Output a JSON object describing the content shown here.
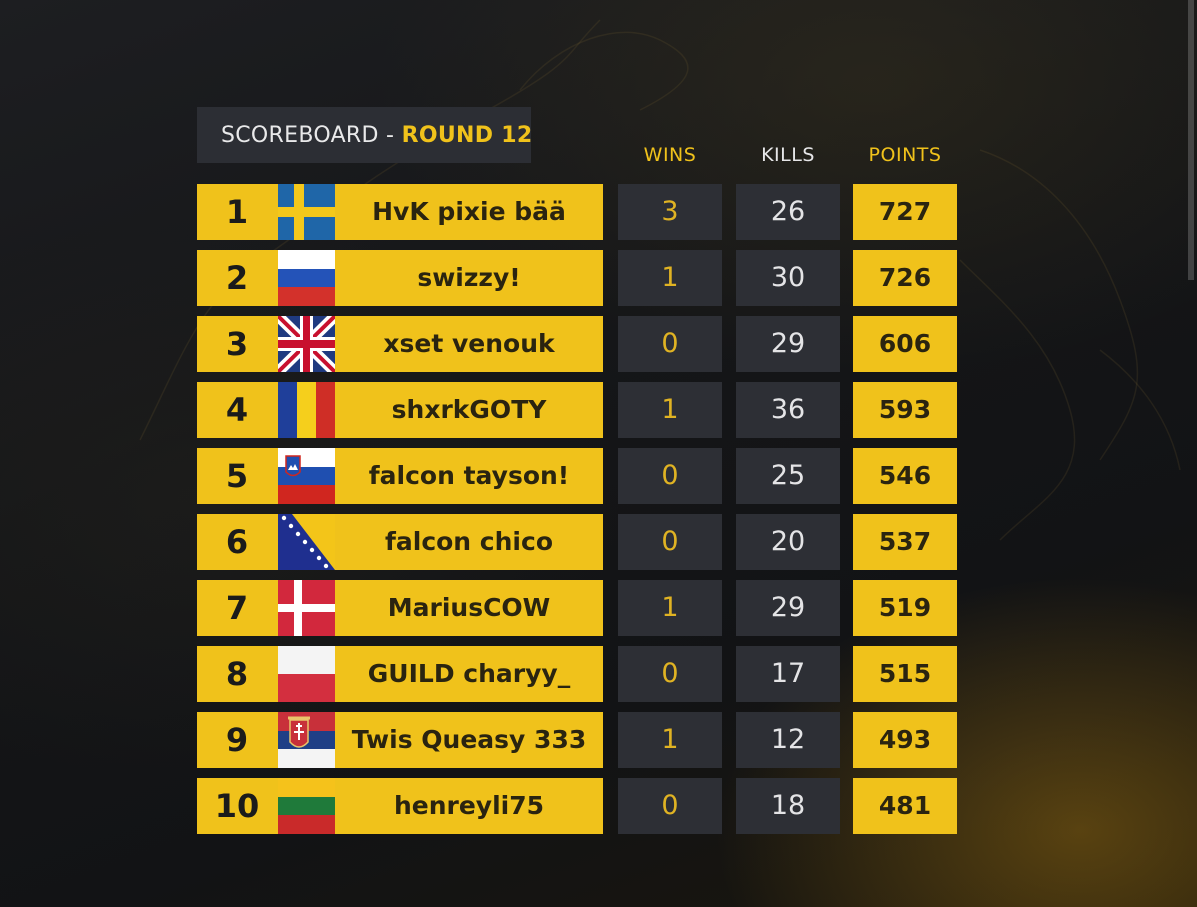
{
  "scoreboard": {
    "title_prefix": "SCOREBOARD - ",
    "title_round": "ROUND 12",
    "headers": {
      "wins": "WINS",
      "kills": "KILLS",
      "points": "POINTS"
    },
    "rows": [
      {
        "rank": "1",
        "flag": "sweden-flag-icon",
        "name": "HvK pixie bää",
        "wins": "3",
        "kills": "26",
        "points": "727"
      },
      {
        "rank": "2",
        "flag": "russia-flag-icon",
        "name": "swizzy!",
        "wins": "1",
        "kills": "30",
        "points": "726"
      },
      {
        "rank": "3",
        "flag": "uk-flag-icon",
        "name": "xset venouk",
        "wins": "0",
        "kills": "29",
        "points": "606"
      },
      {
        "rank": "4",
        "flag": "romania-flag-icon",
        "name": "shxrkGOTY",
        "wins": "1",
        "kills": "36",
        "points": "593"
      },
      {
        "rank": "5",
        "flag": "slovenia-flag-icon",
        "name": "falcon tayson!",
        "wins": "0",
        "kills": "25",
        "points": "546"
      },
      {
        "rank": "6",
        "flag": "bosnia-flag-icon",
        "name": "falcon chico",
        "wins": "0",
        "kills": "20",
        "points": "537"
      },
      {
        "rank": "7",
        "flag": "denmark-flag-icon",
        "name": "MariusCOW",
        "wins": "1",
        "kills": "29",
        "points": "519"
      },
      {
        "rank": "8",
        "flag": "poland-flag-icon",
        "name": "GUILD charyy_",
        "wins": "0",
        "kills": "17",
        "points": "515"
      },
      {
        "rank": "9",
        "flag": "serbia-flag-icon",
        "name": "Twis Queasy 333",
        "wins": "1",
        "kills": "12",
        "points": "493"
      },
      {
        "rank": "10",
        "flag": "lithuania-flag-icon",
        "name": "henreyli75",
        "wins": "0",
        "kills": "18",
        "points": "481"
      }
    ]
  },
  "colors": {
    "accent_yellow": "#f0c21b",
    "panel_dark": "#2d2f35",
    "background": "#141518"
  }
}
